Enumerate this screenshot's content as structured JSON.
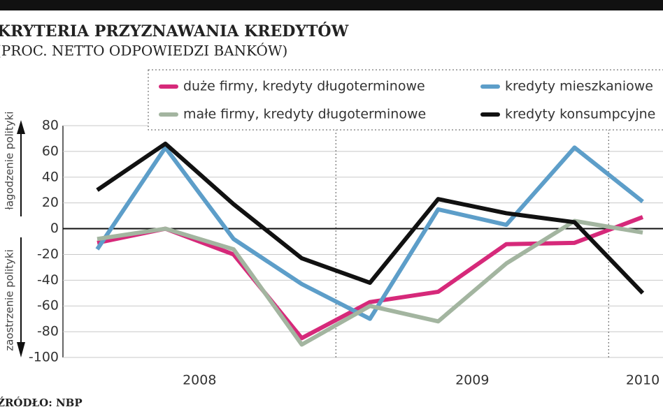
{
  "chart_data": {
    "type": "line",
    "title": "KRYTERIA PRZYZNAWANIA KREDYTÓW",
    "subtitle": "(PROC. NETTO ODPOWIEDZI BANKÓW)",
    "source": "ŹRÓDŁO: NBP",
    "upper_label": "łagodzenie polityki",
    "lower_label": "zaostrzenie polityki",
    "categories": [
      null,
      null,
      null,
      null,
      null,
      null,
      null,
      null,
      null
    ],
    "groups": [
      {
        "label": "2008",
        "size": 4
      },
      {
        "label": "2009",
        "size": 4
      },
      {
        "label": "2010",
        "size": 1
      }
    ],
    "series": [
      {
        "name": "duże firmy, kredyty długoterminowe",
        "color": "#d6297a",
        "values": [
          -11,
          0,
          -20,
          -85,
          -57,
          -49,
          -12,
          -11,
          9
        ]
      },
      {
        "name": "kredyty mieszkaniowe",
        "color": "#5d9ec9",
        "values": [
          -16,
          63,
          -8,
          -43,
          -70,
          15,
          3,
          63,
          21
        ]
      },
      {
        "name": "małe firmy, kredyty długoterminowe",
        "color": "#a3b5a0",
        "values": [
          -8,
          0,
          -16,
          -90,
          -60,
          -72,
          -27,
          6,
          -3
        ]
      },
      {
        "name": "kredyty konsumpcyjne",
        "color": "#111111",
        "values": [
          30,
          66,
          19,
          -23,
          -42,
          23,
          12,
          5,
          -50
        ]
      }
    ],
    "ylim": [
      -100,
      80
    ],
    "yticks": [
      -100,
      -80,
      -60,
      -40,
      -20,
      0,
      20,
      40,
      60,
      80
    ],
    "grid": true
  }
}
